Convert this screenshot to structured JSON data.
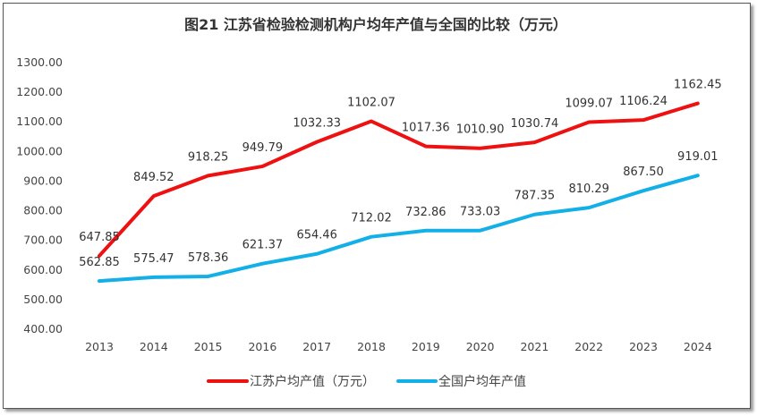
{
  "chart_data": {
    "type": "line",
    "title": "图21  江苏省检验检测机构户均年产值与全国的比较（万元）",
    "categories": [
      "2013",
      "2014",
      "2015",
      "2016",
      "2017",
      "2018",
      "2019",
      "2020",
      "2021",
      "2022",
      "2023",
      "2024"
    ],
    "series": [
      {
        "name": "江苏户均产值（万元）",
        "color": "#ee1111",
        "values": [
          647.85,
          849.52,
          918.25,
          949.79,
          1032.33,
          1102.07,
          1017.36,
          1010.9,
          1030.74,
          1099.07,
          1106.24,
          1162.45
        ]
      },
      {
        "name": "全国户均年产值",
        "color": "#13b0e8",
        "values": [
          562.85,
          575.47,
          578.36,
          621.37,
          654.46,
          712.02,
          732.86,
          733.03,
          787.35,
          810.29,
          867.5,
          919.01
        ]
      }
    ],
    "ylim": [
      400,
      1300
    ],
    "yticks": [
      "400.00",
      "500.00",
      "600.00",
      "700.00",
      "800.00",
      "900.00",
      "1000.00",
      "1100.00",
      "1200.00",
      "1300.00"
    ],
    "grid": false,
    "legend": "bottom"
  }
}
